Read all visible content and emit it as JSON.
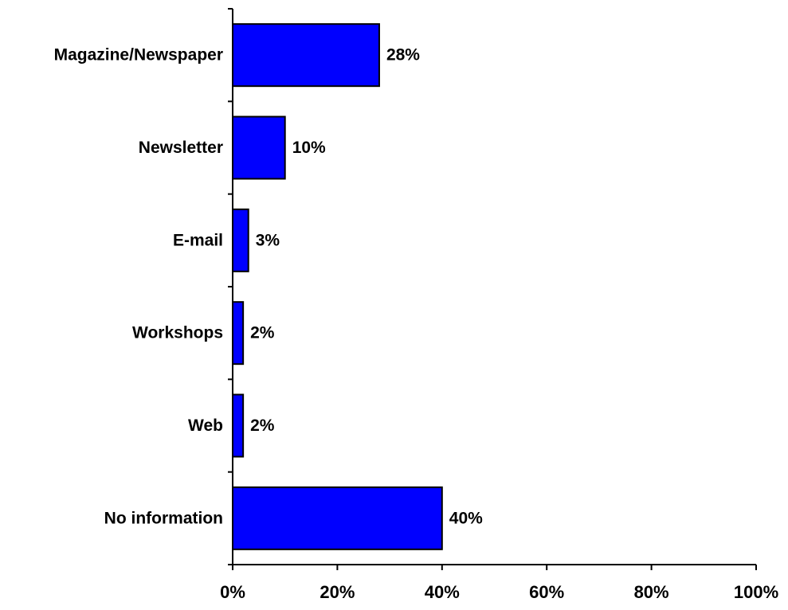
{
  "chart_data": {
    "type": "bar",
    "orientation": "horizontal",
    "categories": [
      "Magazine/Newspaper",
      "Newsletter",
      "E-mail",
      "Workshops",
      "Web",
      "No information"
    ],
    "values": [
      28,
      10,
      3,
      2,
      2,
      40
    ],
    "value_labels": [
      "28%",
      "10%",
      "3%",
      "2%",
      "2%",
      "40%"
    ],
    "xlim": [
      0,
      100
    ],
    "xticks": [
      0,
      20,
      40,
      60,
      80,
      100
    ],
    "xtick_labels": [
      "0%",
      "20%",
      "40%",
      "60%",
      "80%",
      "100%"
    ],
    "title": "",
    "xlabel": "",
    "ylabel": "",
    "grid": false,
    "legend": "none",
    "bar_color": "#0000FF",
    "bar_edge_color": "#000000"
  }
}
